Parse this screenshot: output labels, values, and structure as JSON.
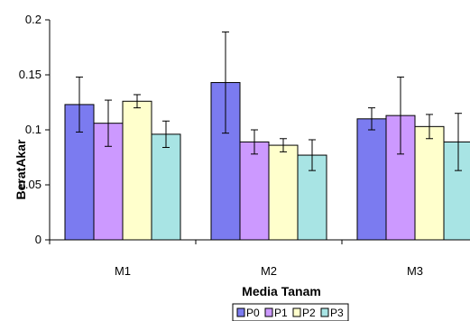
{
  "chart_data": {
    "type": "bar",
    "xlabel": "Media Tanam",
    "ylabel": "BeratAkar",
    "ylim": [
      0,
      0.2
    ],
    "yticks": [
      "0",
      "0.05",
      "0.1",
      "0.15",
      "0.2"
    ],
    "ytick_values": [
      0,
      0.05,
      0.1,
      0.15,
      0.2
    ],
    "grid": false,
    "legend_position": "bottom",
    "categories": [
      "M1",
      "M2",
      "M3"
    ],
    "series": [
      {
        "name": "P0",
        "color": "#7b7bf0",
        "values": [
          0.123,
          0.143,
          0.11
        ],
        "errors": [
          0.025,
          0.046,
          0.01
        ]
      },
      {
        "name": "P1",
        "color": "#cc99ff",
        "values": [
          0.106,
          0.089,
          0.113
        ],
        "errors": [
          0.021,
          0.011,
          0.035
        ]
      },
      {
        "name": "P2",
        "color": "#ffffcc",
        "values": [
          0.126,
          0.086,
          0.103
        ],
        "errors": [
          0.006,
          0.006,
          0.011
        ]
      },
      {
        "name": "P3",
        "color": "#a8e4e4",
        "values": [
          0.096,
          0.077,
          0.089
        ],
        "errors": [
          0.012,
          0.014,
          0.026
        ]
      }
    ]
  }
}
